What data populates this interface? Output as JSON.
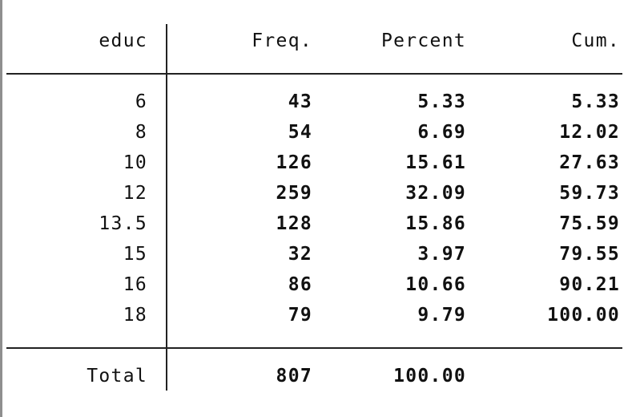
{
  "table": {
    "headers": [
      "educ",
      "Freq.",
      "Percent",
      "Cum."
    ],
    "rows": [
      {
        "educ": "6",
        "freq": "43",
        "percent": "5.33",
        "cum": "5.33"
      },
      {
        "educ": "8",
        "freq": "54",
        "percent": "6.69",
        "cum": "12.02"
      },
      {
        "educ": "10",
        "freq": "126",
        "percent": "15.61",
        "cum": "27.63"
      },
      {
        "educ": "12",
        "freq": "259",
        "percent": "32.09",
        "cum": "59.73"
      },
      {
        "educ": "13.5",
        "freq": "128",
        "percent": "15.86",
        "cum": "75.59"
      },
      {
        "educ": "15",
        "freq": "32",
        "percent": "3.97",
        "cum": "79.55"
      },
      {
        "educ": "16",
        "freq": "86",
        "percent": "10.66",
        "cum": "90.21"
      },
      {
        "educ": "18",
        "freq": "79",
        "percent": "9.79",
        "cum": "100.00"
      }
    ],
    "total": {
      "label": "Total",
      "freq": "807",
      "percent": "100.00",
      "cum": ""
    }
  }
}
